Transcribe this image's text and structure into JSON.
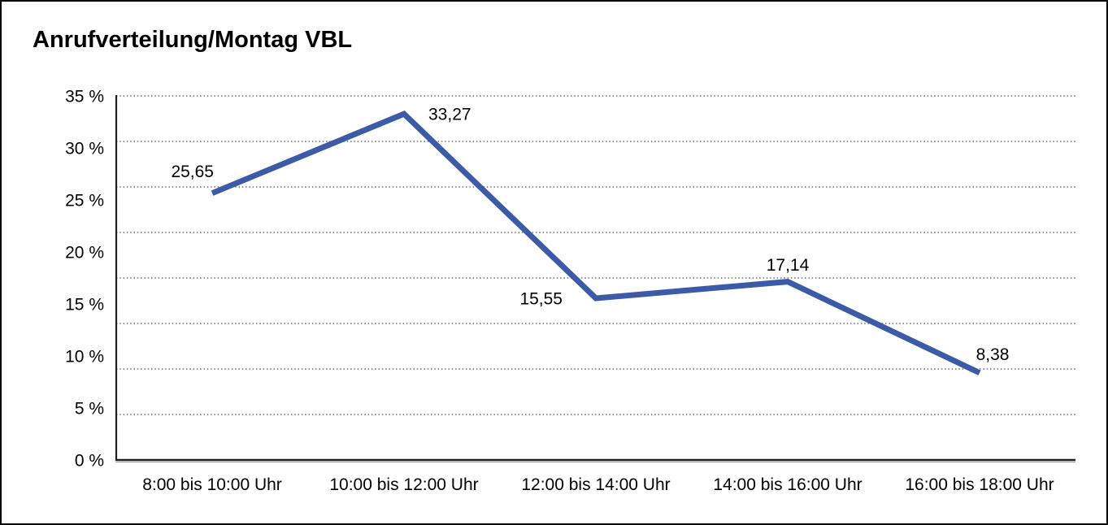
{
  "window": {
    "background": "#ffffff",
    "border_color": "#000000"
  },
  "chart_data": {
    "type": "line",
    "title": "Anrufverteilung/Montag VBL",
    "categories": [
      "8:00 bis 10:00 Uhr",
      "10:00 bis 12:00 Uhr",
      "12:00 bis 14:00 Uhr",
      "14:00 bis 16:00 Uhr",
      "16:00 bis 18:00 Uhr"
    ],
    "series": [
      {
        "name": "Anrufverteilung Montag VBL",
        "values": [
          25.65,
          33.27,
          15.55,
          17.14,
          8.38
        ],
        "value_labels": [
          "25,65",
          "33,27",
          "15,55",
          "17,14",
          "8,38"
        ]
      }
    ],
    "xlabel": "",
    "ylabel": "",
    "ylim": [
      0,
      35
    ],
    "y_tick_step": 5,
    "y_tick_labels": [
      "35 %",
      "30 %",
      "25 %",
      "20 %",
      "15 %",
      "10 %",
      "5 %",
      "0 %"
    ],
    "grid": "horizontal dotted",
    "gridline_count": 8,
    "legend": "none",
    "colors": {
      "line": "#3B5BA8",
      "grid": "#4d4d4d",
      "axis": "#1f1f1f",
      "text": "#000000"
    }
  }
}
